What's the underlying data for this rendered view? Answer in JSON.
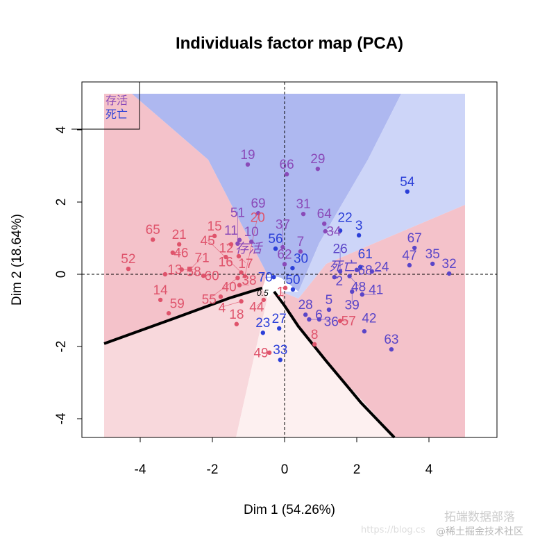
{
  "chart_data": {
    "type": "scatter",
    "title": "Individuals factor map (PCA)",
    "xlabel": "Dim 1 (54.26%)",
    "ylabel": "Dim 2 (18.64%)",
    "xlim": [
      -5.5,
      5.9
    ],
    "ylim": [
      -4.5,
      5.3
    ],
    "xticks": [
      -4,
      -2,
      0,
      2,
      4
    ],
    "yticks": [
      -4,
      -2,
      0,
      2,
      4
    ],
    "colors": {
      "red": "#DF536B",
      "blue": "#2B3FD8",
      "purple": "#8A4AB8",
      "violet": "#5A45C8"
    },
    "region_colors": {
      "blue_dark": "#AEB8F0",
      "blue_light": "#CDD5F8",
      "red": "#F4C2CA",
      "pink": "#F8D8DC",
      "pink_light": "#FDF0F0"
    },
    "legend": {
      "position": "top-left",
      "entries": [
        {
          "label": "存活",
          "color": "#8A4AB8"
        },
        {
          "label": "死亡",
          "color": "#2B3FD8"
        }
      ]
    },
    "group_labels": [
      {
        "label": "存活",
        "x": -1.0,
        "y": 0.6,
        "color": "#8A4AB8"
      },
      {
        "label": "死亡",
        "x": 1.6,
        "y": 0.1,
        "color": "#5A45C8"
      }
    ],
    "contour": {
      "label": "0.5",
      "left": [
        [
          -5,
          -1.92
        ],
        [
          -3,
          -1.2
        ],
        [
          -1.5,
          -0.65
        ],
        [
          -0.62,
          -0.38
        ]
      ],
      "right": [
        [
          -0.29,
          -0.48
        ],
        [
          0,
          -0.87
        ],
        [
          0.38,
          -1.44
        ],
        [
          1.15,
          -2.4
        ],
        [
          2.12,
          -3.56
        ],
        [
          3.04,
          -4.52
        ]
      ]
    },
    "points": [
      {
        "label": "19",
        "x": -1.02,
        "y": 3.04,
        "c": "purple"
      },
      {
        "label": "66",
        "x": 0.06,
        "y": 2.77,
        "c": "purple"
      },
      {
        "label": "29",
        "x": 0.92,
        "y": 2.92,
        "c": "purple"
      },
      {
        "label": "69",
        "x": -0.73,
        "y": 1.69,
        "c": "purple"
      },
      {
        "label": "31",
        "x": 0.52,
        "y": 1.67,
        "c": "purple"
      },
      {
        "label": "64",
        "x": 1.1,
        "y": 1.4,
        "c": "purple"
      },
      {
        "label": "34",
        "x": 1.13,
        "y": 1.19,
        "c": "purple"
      },
      {
        "label": "22",
        "x": 1.54,
        "y": 1.21,
        "c": "blue"
      },
      {
        "label": "3",
        "x": 2.06,
        "y": 1.08,
        "c": "blue"
      },
      {
        "label": "54",
        "x": 3.4,
        "y": 2.29,
        "c": "blue"
      },
      {
        "label": "67",
        "x": 3.6,
        "y": 0.73,
        "c": "violet"
      },
      {
        "label": "47",
        "x": 3.46,
        "y": 0.25,
        "c": "violet"
      },
      {
        "label": "35",
        "x": 4.1,
        "y": 0.29,
        "c": "violet"
      },
      {
        "label": "32",
        "x": 4.56,
        "y": 0.02,
        "c": "violet"
      },
      {
        "label": "61",
        "x": 2.1,
        "y": 0.2,
        "c": "blue"
      },
      {
        "label": "68",
        "x": 2.0,
        "y": 0.12,
        "c": "violet"
      },
      {
        "label": "24",
        "x": 2.42,
        "y": 0.08,
        "c": "violet"
      },
      {
        "label": "2",
        "x": 1.38,
        "y": -0.08,
        "c": "violet"
      },
      {
        "label": "26",
        "x": 1.54,
        "y": 0.08,
        "c": "violet"
      },
      {
        "label": "48",
        "x": 1.8,
        "y": -0.05,
        "c": "violet"
      },
      {
        "label": "41",
        "x": 2.15,
        "y": -0.56,
        "c": "violet"
      },
      {
        "label": "39",
        "x": 1.87,
        "y": -0.48,
        "c": "violet"
      },
      {
        "label": "5",
        "x": 1.23,
        "y": -0.98,
        "c": "violet"
      },
      {
        "label": "57",
        "x": 1.54,
        "y": -1.29,
        "c": "red"
      },
      {
        "label": "42",
        "x": 2.21,
        "y": -1.58,
        "c": "violet"
      },
      {
        "label": "63",
        "x": 2.96,
        "y": -2.08,
        "c": "violet"
      },
      {
        "label": "8",
        "x": 0.83,
        "y": -1.94,
        "c": "red"
      },
      {
        "label": "28",
        "x": 0.58,
        "y": -1.12,
        "c": "violet"
      },
      {
        "label": "6",
        "x": 0.68,
        "y": -1.25,
        "c": "violet"
      },
      {
        "label": "36",
        "x": 0.96,
        "y": -1.25,
        "c": "violet"
      },
      {
        "label": "50",
        "x": 0.23,
        "y": -0.42,
        "c": "blue"
      },
      {
        "label": "1",
        "x": 0.02,
        "y": -0.38,
        "c": "red"
      },
      {
        "label": "62",
        "x": 0.0,
        "y": 0.28,
        "c": "purple"
      },
      {
        "label": "30",
        "x": 0.22,
        "y": 0.17,
        "c": "blue"
      },
      {
        "label": "27",
        "x": -0.15,
        "y": -1.5,
        "c": "blue"
      },
      {
        "label": "23",
        "x": -0.6,
        "y": -1.62,
        "c": "blue"
      },
      {
        "label": "33",
        "x": -0.12,
        "y": -2.37,
        "c": "blue"
      },
      {
        "label": "49",
        "x": -0.42,
        "y": -2.17,
        "c": "red"
      },
      {
        "label": "18",
        "x": -1.33,
        "y": -1.38,
        "c": "red"
      },
      {
        "label": "44",
        "x": -0.58,
        "y": -0.71,
        "c": "red"
      },
      {
        "label": "70",
        "x": -0.3,
        "y": -0.08,
        "c": "blue"
      },
      {
        "label": "56",
        "x": -0.25,
        "y": 0.71,
        "c": "blue"
      },
      {
        "label": "7",
        "x": 0.44,
        "y": 0.63,
        "c": "purple"
      },
      {
        "label": "37",
        "x": -0.05,
        "y": 0.75,
        "c": "purple"
      },
      {
        "label": "10",
        "x": -0.92,
        "y": 0.9,
        "c": "purple"
      },
      {
        "label": "11",
        "x": -1.25,
        "y": 0.95,
        "c": "purple"
      },
      {
        "label": "15",
        "x": -1.94,
        "y": 1.06,
        "c": "red"
      },
      {
        "label": "12",
        "x": -1.48,
        "y": 0.83,
        "c": "red"
      },
      {
        "label": "51",
        "x": -1.3,
        "y": 0.85,
        "c": "purple"
      },
      {
        "label": "16",
        "x": -1.63,
        "y": 0.48,
        "c": "red"
      },
      {
        "label": "17",
        "x": -1.27,
        "y": 0.5,
        "c": "red"
      },
      {
        "label": "65",
        "x": -3.65,
        "y": 0.96,
        "c": "red"
      },
      {
        "label": "21",
        "x": -2.92,
        "y": 0.83,
        "c": "red"
      },
      {
        "label": "46",
        "x": -3.1,
        "y": 0.6,
        "c": "red"
      },
      {
        "label": "52",
        "x": -4.33,
        "y": 0.15,
        "c": "red"
      },
      {
        "label": "13",
        "x": -3.31,
        "y": 0.0,
        "c": "red"
      },
      {
        "label": "58",
        "x": -2.85,
        "y": 0.13,
        "c": "red"
      },
      {
        "label": "71",
        "x": -2.62,
        "y": 0.13,
        "c": "red"
      },
      {
        "label": "60",
        "x": -2.25,
        "y": -0.04,
        "c": "red"
      },
      {
        "label": "14",
        "x": -3.44,
        "y": -0.71,
        "c": "red"
      },
      {
        "label": "59",
        "x": -3.21,
        "y": -1.08,
        "c": "red"
      },
      {
        "label": "40",
        "x": -1.77,
        "y": -0.62,
        "c": "red"
      },
      {
        "label": "38",
        "x": -1.25,
        "y": -0.3,
        "c": "red"
      },
      {
        "label": "4",
        "x": -1.2,
        "y": -0.75,
        "c": "red"
      },
      {
        "label": "45",
        "x": -1.2,
        "y": 0.05,
        "c": "red"
      },
      {
        "label": "55",
        "x": -1.3,
        "y": -0.1,
        "c": "red"
      },
      {
        "label": "20",
        "x": -1.1,
        "y": -0.05,
        "c": "red"
      }
    ]
  },
  "watermark": {
    "brand": "拓端数据部落",
    "sub": "@稀土掘金技术社区",
    "url": "https://blog.cs"
  }
}
